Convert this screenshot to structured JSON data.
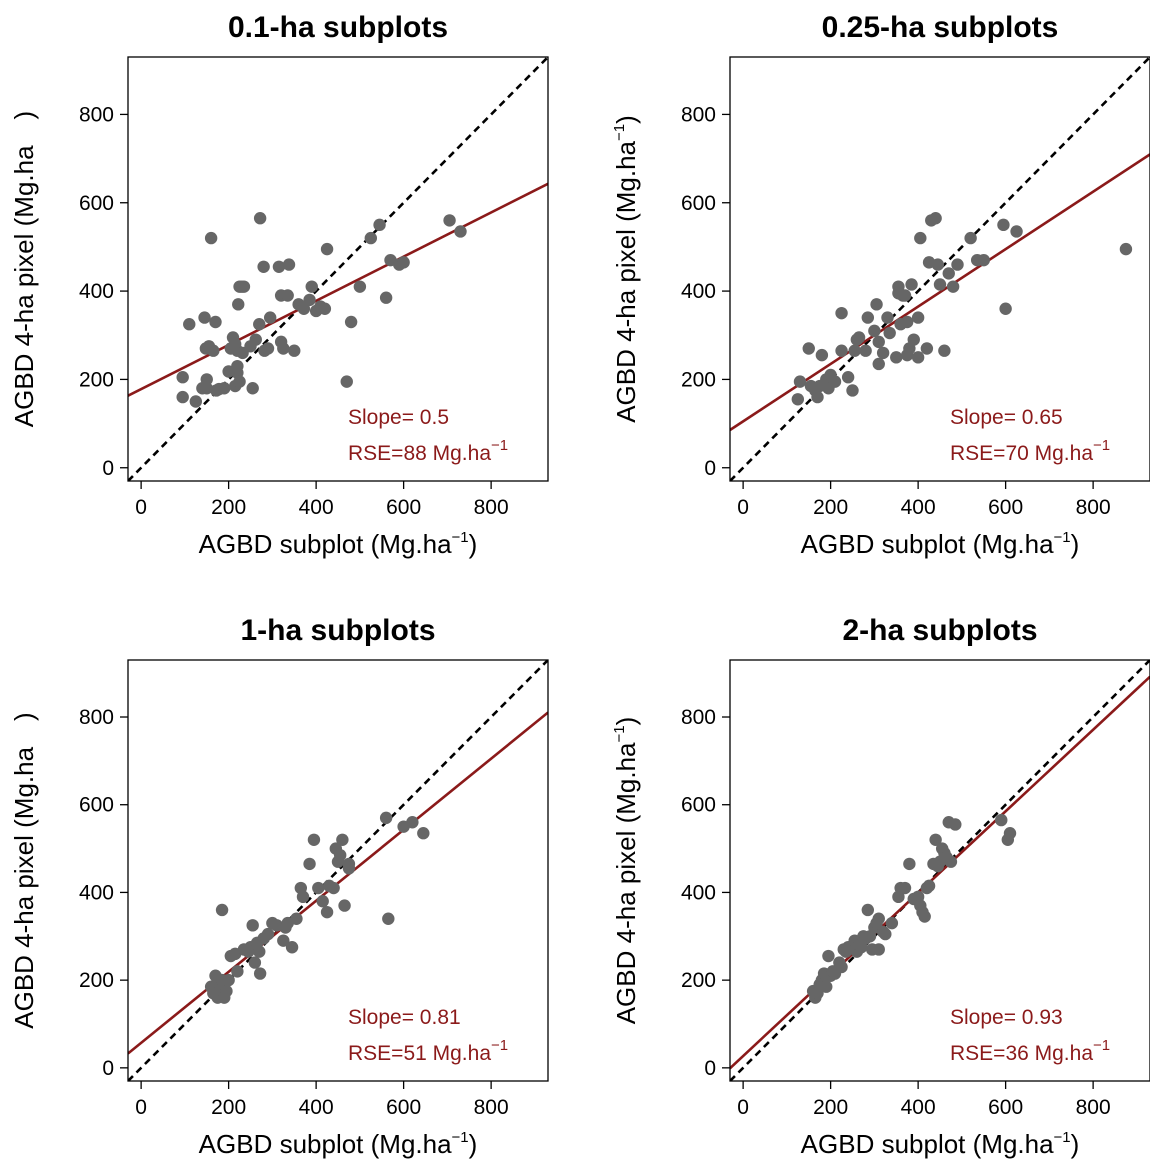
{
  "chart_data": [
    {
      "type": "scatter",
      "title": "0.1-ha subplots",
      "xlabel": {
        "text": "AGBD subplot (Mg.ha",
        "sup": "−1",
        "tail": ")"
      },
      "ylabel": {
        "text": "AGBD 4-ha pixel (Mg.ha",
        "sup": "",
        "tail": ")"
      },
      "xlim": [
        -30,
        930
      ],
      "ylim": [
        -30,
        930
      ],
      "xticks": [
        "0",
        "200",
        "400",
        "600",
        "800"
      ],
      "yticks": [
        "0",
        "200",
        "400",
        "600",
        "800"
      ],
      "points": [
        [
          95,
          160
        ],
        [
          95,
          205
        ],
        [
          110,
          325
        ],
        [
          125,
          150
        ],
        [
          140,
          180
        ],
        [
          145,
          340
        ],
        [
          148,
          270
        ],
        [
          150,
          180
        ],
        [
          150,
          200
        ],
        [
          155,
          275
        ],
        [
          160,
          520
        ],
        [
          165,
          265
        ],
        [
          170,
          330
        ],
        [
          172,
          175
        ],
        [
          178,
          178
        ],
        [
          190,
          180
        ],
        [
          200,
          218
        ],
        [
          205,
          270
        ],
        [
          210,
          295
        ],
        [
          215,
          185
        ],
        [
          215,
          280
        ],
        [
          220,
          265
        ],
        [
          220,
          215
        ],
        [
          220,
          230
        ],
        [
          222,
          370
        ],
        [
          225,
          410
        ],
        [
          225,
          195
        ],
        [
          230,
          410
        ],
        [
          232,
          260
        ],
        [
          235,
          410
        ],
        [
          250,
          275
        ],
        [
          255,
          180
        ],
        [
          262,
          290
        ],
        [
          270,
          325
        ],
        [
          272,
          565
        ],
        [
          280,
          455
        ],
        [
          282,
          265
        ],
        [
          290,
          270
        ],
        [
          295,
          340
        ],
        [
          315,
          455
        ],
        [
          320,
          390
        ],
        [
          320,
          285
        ],
        [
          325,
          270
        ],
        [
          335,
          390
        ],
        [
          338,
          460
        ],
        [
          350,
          265
        ],
        [
          360,
          370
        ],
        [
          372,
          360
        ],
        [
          385,
          380
        ],
        [
          390,
          410
        ],
        [
          400,
          355
        ],
        [
          410,
          365
        ],
        [
          420,
          360
        ],
        [
          425,
          495
        ],
        [
          470,
          195
        ],
        [
          480,
          330
        ],
        [
          500,
          410
        ],
        [
          525,
          520
        ],
        [
          545,
          550
        ],
        [
          560,
          385
        ],
        [
          570,
          470
        ],
        [
          590,
          460
        ],
        [
          600,
          465
        ],
        [
          705,
          560
        ],
        [
          730,
          535
        ]
      ],
      "fit": {
        "slope": 0.5,
        "intercept": 178
      },
      "slope_text": "Slope= 0.5",
      "rse_text": "RSE=88 Mg.ha",
      "rse_sup": "−1",
      "colors": {
        "points": "#666666",
        "fit": "#8b1a1a",
        "identity": "#000000"
      }
    },
    {
      "type": "scatter",
      "title": "0.25-ha subplots",
      "xlabel": {
        "text": "AGBD subplot (Mg.ha",
        "sup": "−1",
        "tail": ")"
      },
      "ylabel": {
        "text": "AGBD 4-ha pixel (Mg.ha",
        "sup": "−1",
        "tail": ")"
      },
      "xlim": [
        -30,
        930
      ],
      "ylim": [
        -30,
        930
      ],
      "xticks": [
        "0",
        "200",
        "400",
        "600",
        "800"
      ],
      "yticks": [
        "0",
        "200",
        "400",
        "600",
        "800"
      ],
      "points": [
        [
          125,
          155
        ],
        [
          130,
          195
        ],
        [
          150,
          270
        ],
        [
          155,
          185
        ],
        [
          165,
          175
        ],
        [
          170,
          160
        ],
        [
          175,
          185
        ],
        [
          180,
          255
        ],
        [
          190,
          200
        ],
        [
          195,
          180
        ],
        [
          200,
          210
        ],
        [
          210,
          195
        ],
        [
          225,
          350
        ],
        [
          225,
          265
        ],
        [
          240,
          205
        ],
        [
          250,
          175
        ],
        [
          255,
          265
        ],
        [
          260,
          290
        ],
        [
          265,
          295
        ],
        [
          280,
          265
        ],
        [
          285,
          340
        ],
        [
          300,
          310
        ],
        [
          305,
          370
        ],
        [
          310,
          235
        ],
        [
          310,
          285
        ],
        [
          320,
          260
        ],
        [
          330,
          340
        ],
        [
          335,
          305
        ],
        [
          350,
          250
        ],
        [
          355,
          395
        ],
        [
          355,
          410
        ],
        [
          360,
          325
        ],
        [
          365,
          390
        ],
        [
          370,
          390
        ],
        [
          375,
          255
        ],
        [
          375,
          330
        ],
        [
          380,
          270
        ],
        [
          385,
          415
        ],
        [
          390,
          290
        ],
        [
          400,
          340
        ],
        [
          400,
          250
        ],
        [
          405,
          520
        ],
        [
          420,
          270
        ],
        [
          425,
          465
        ],
        [
          430,
          560
        ],
        [
          440,
          565
        ],
        [
          445,
          460
        ],
        [
          450,
          415
        ],
        [
          460,
          265
        ],
        [
          470,
          440
        ],
        [
          480,
          410
        ],
        [
          490,
          460
        ],
        [
          520,
          520
        ],
        [
          535,
          470
        ],
        [
          550,
          470
        ],
        [
          595,
          550
        ],
        [
          600,
          360
        ],
        [
          625,
          535
        ],
        [
          875,
          495
        ]
      ],
      "fit": {
        "slope": 0.65,
        "intercept": 105
      },
      "slope_text": "Slope= 0.65",
      "rse_text": "RSE=70 Mg.ha",
      "rse_sup": "−1",
      "colors": {
        "points": "#666666",
        "fit": "#8b1a1a",
        "identity": "#000000"
      }
    },
    {
      "type": "scatter",
      "title": "1-ha subplots",
      "xlabel": {
        "text": "AGBD subplot (Mg.ha",
        "sup": "−1",
        "tail": ")"
      },
      "ylabel": {
        "text": "AGBD 4-ha pixel (Mg.ha",
        "sup": "",
        "tail": ")"
      },
      "xlim": [
        -30,
        930
      ],
      "ylim": [
        -30,
        930
      ],
      "xticks": [
        "0",
        "200",
        "400",
        "600",
        "800"
      ],
      "yticks": [
        "0",
        "200",
        "400",
        "600",
        "800"
      ],
      "points": [
        [
          160,
          185
        ],
        [
          165,
          170
        ],
        [
          170,
          210
        ],
        [
          175,
          160
        ],
        [
          178,
          175
        ],
        [
          180,
          190
        ],
        [
          185,
          200
        ],
        [
          185,
          360
        ],
        [
          190,
          160
        ],
        [
          195,
          175
        ],
        [
          200,
          200
        ],
        [
          205,
          255
        ],
        [
          215,
          260
        ],
        [
          220,
          220
        ],
        [
          235,
          270
        ],
        [
          245,
          265
        ],
        [
          250,
          275
        ],
        [
          255,
          325
        ],
        [
          260,
          240
        ],
        [
          265,
          285
        ],
        [
          270,
          265
        ],
        [
          272,
          215
        ],
        [
          280,
          295
        ],
        [
          290,
          305
        ],
        [
          300,
          330
        ],
        [
          310,
          325
        ],
        [
          325,
          290
        ],
        [
          330,
          320
        ],
        [
          335,
          330
        ],
        [
          345,
          275
        ],
        [
          355,
          340
        ],
        [
          365,
          410
        ],
        [
          370,
          390
        ],
        [
          385,
          465
        ],
        [
          395,
          520
        ],
        [
          405,
          410
        ],
        [
          415,
          380
        ],
        [
          425,
          355
        ],
        [
          430,
          415
        ],
        [
          440,
          410
        ],
        [
          445,
          500
        ],
        [
          450,
          470
        ],
        [
          455,
          485
        ],
        [
          460,
          520
        ],
        [
          465,
          370
        ],
        [
          475,
          465
        ],
        [
          475,
          455
        ],
        [
          560,
          570
        ],
        [
          565,
          340
        ],
        [
          600,
          550
        ],
        [
          620,
          560
        ],
        [
          645,
          535
        ]
      ],
      "fit": {
        "slope": 0.81,
        "intercept": 57
      },
      "slope_text": "Slope= 0.81",
      "rse_text": "RSE=51 Mg.ha",
      "rse_sup": "−1",
      "colors": {
        "points": "#666666",
        "fit": "#8b1a1a",
        "identity": "#000000"
      }
    },
    {
      "type": "scatter",
      "title": "2-ha subplots",
      "xlabel": {
        "text": "AGBD subplot (Mg.ha",
        "sup": "−1",
        "tail": ")"
      },
      "ylabel": {
        "text": "AGBD 4-ha pixel (Mg.ha",
        "sup": "−1",
        "tail": ")"
      },
      "xlim": [
        -30,
        930
      ],
      "ylim": [
        -30,
        930
      ],
      "xticks": [
        "0",
        "200",
        "400",
        "600",
        "800"
      ],
      "yticks": [
        "0",
        "200",
        "400",
        "600",
        "800"
      ],
      "points": [
        [
          160,
          175
        ],
        [
          165,
          160
        ],
        [
          170,
          170
        ],
        [
          175,
          190
        ],
        [
          180,
          200
        ],
        [
          185,
          215
        ],
        [
          190,
          185
        ],
        [
          195,
          255
        ],
        [
          200,
          210
        ],
        [
          205,
          220
        ],
        [
          210,
          215
        ],
        [
          220,
          240
        ],
        [
          225,
          230
        ],
        [
          230,
          270
        ],
        [
          235,
          265
        ],
        [
          240,
          275
        ],
        [
          255,
          290
        ],
        [
          260,
          265
        ],
        [
          265,
          280
        ],
        [
          270,
          275
        ],
        [
          275,
          300
        ],
        [
          280,
          295
        ],
        [
          285,
          360
        ],
        [
          290,
          300
        ],
        [
          295,
          270
        ],
        [
          300,
          320
        ],
        [
          305,
          330
        ],
        [
          310,
          340
        ],
        [
          310,
          270
        ],
        [
          320,
          310
        ],
        [
          325,
          305
        ],
        [
          340,
          330
        ],
        [
          355,
          390
        ],
        [
          360,
          410
        ],
        [
          370,
          410
        ],
        [
          380,
          465
        ],
        [
          390,
          385
        ],
        [
          400,
          390
        ],
        [
          405,
          370
        ],
        [
          410,
          355
        ],
        [
          415,
          345
        ],
        [
          420,
          410
        ],
        [
          425,
          415
        ],
        [
          435,
          465
        ],
        [
          440,
          520
        ],
        [
          445,
          460
        ],
        [
          450,
          470
        ],
        [
          455,
          500
        ],
        [
          460,
          490
        ],
        [
          465,
          480
        ],
        [
          470,
          560
        ],
        [
          475,
          470
        ],
        [
          485,
          555
        ],
        [
          590,
          565
        ],
        [
          605,
          520
        ],
        [
          610,
          535
        ]
      ],
      "fit": {
        "slope": 0.93,
        "intercept": 27
      },
      "slope_text": "Slope= 0.93",
      "rse_text": "RSE=36 Mg.ha",
      "rse_sup": "−1",
      "colors": {
        "points": "#666666",
        "fit": "#8b1a1a",
        "identity": "#000000"
      }
    }
  ]
}
